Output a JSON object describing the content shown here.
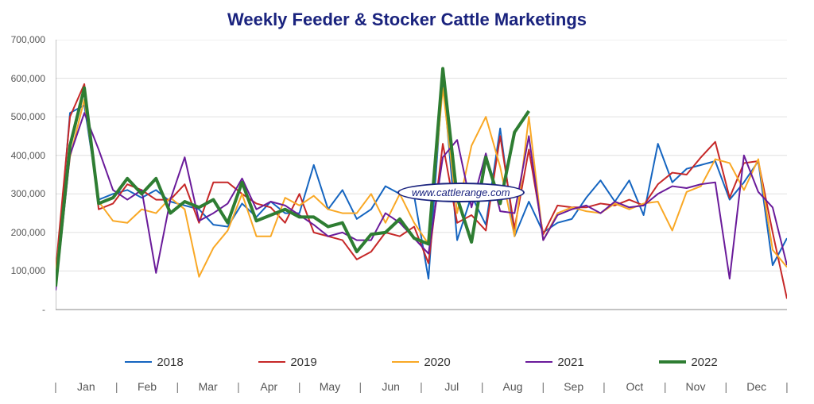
{
  "chart": {
    "type": "line",
    "title": "Weekly Feeder & Stocker Cattle Marketings",
    "title_color": "#1a237e",
    "title_fontsize": 22,
    "watermark": "www.cattlerange.com",
    "watermark_color": "#1a237e",
    "background_color": "#ffffff",
    "grid_color": "#e0e0e0",
    "axis_color": "#888888",
    "label_color": "#555555",
    "ylim": [
      0,
      700000
    ],
    "ytick_step": 100000,
    "y_labels": [
      "-",
      "100,000",
      "200,000",
      "300,000",
      "400,000",
      "500,000",
      "600,000",
      "700,000"
    ],
    "x_months": [
      "Jan",
      "Feb",
      "Mar",
      "Apr",
      "May",
      "Jun",
      "Jul",
      "Aug",
      "Sep",
      "Oct",
      "Nov",
      "Dec"
    ],
    "weeks_count": 52,
    "series": [
      {
        "name": "2018",
        "color": "#1565c0",
        "line_width": 2,
        "values": [
          65000,
          510000,
          530000,
          285000,
          300000,
          310000,
          290000,
          310000,
          280000,
          270000,
          260000,
          220000,
          215000,
          275000,
          240000,
          280000,
          250000,
          250000,
          375000,
          260000,
          310000,
          235000,
          260000,
          320000,
          300000,
          295000,
          80000,
          605000,
          180000,
          295000,
          220000,
          470000,
          190000,
          280000,
          200000,
          225000,
          235000,
          290000,
          335000,
          280000,
          335000,
          245000,
          430000,
          330000,
          365000,
          375000,
          385000,
          285000,
          330000,
          385000,
          115000,
          185000
        ]
      },
      {
        "name": "2019",
        "color": "#c62828",
        "line_width": 2,
        "values": [
          100000,
          500000,
          585000,
          260000,
          275000,
          325000,
          310000,
          285000,
          285000,
          325000,
          225000,
          330000,
          330000,
          300000,
          275000,
          265000,
          225000,
          300000,
          200000,
          190000,
          180000,
          130000,
          150000,
          200000,
          190000,
          215000,
          120000,
          430000,
          225000,
          245000,
          205000,
          450000,
          210000,
          415000,
          195000,
          270000,
          265000,
          265000,
          275000,
          270000,
          285000,
          270000,
          325000,
          355000,
          350000,
          395000,
          435000,
          290000,
          380000,
          385000,
          200000,
          28000
        ]
      },
      {
        "name": "2020",
        "color": "#f9a825",
        "line_width": 2,
        "values": [
          95000,
          395000,
          545000,
          280000,
          230000,
          225000,
          260000,
          250000,
          290000,
          260000,
          85000,
          160000,
          205000,
          300000,
          190000,
          190000,
          290000,
          270000,
          295000,
          260000,
          250000,
          250000,
          300000,
          225000,
          300000,
          225000,
          170000,
          575000,
          250000,
          425000,
          500000,
          370000,
          190000,
          500000,
          180000,
          250000,
          265000,
          255000,
          250000,
          275000,
          260000,
          275000,
          280000,
          205000,
          305000,
          320000,
          390000,
          380000,
          310000,
          390000,
          155000,
          110000
        ]
      },
      {
        "name": "2021",
        "color": "#6a1b9a",
        "line_width": 2,
        "values": [
          50000,
          400000,
          510000,
          415000,
          310000,
          285000,
          310000,
          95000,
          285000,
          395000,
          230000,
          250000,
          275000,
          340000,
          260000,
          280000,
          270000,
          245000,
          220000,
          190000,
          200000,
          180000,
          180000,
          250000,
          225000,
          185000,
          145000,
          395000,
          440000,
          265000,
          405000,
          255000,
          250000,
          450000,
          180000,
          245000,
          260000,
          270000,
          250000,
          280000,
          265000,
          270000,
          300000,
          320000,
          315000,
          325000,
          330000,
          80000,
          400000,
          305000,
          265000,
          115000
        ]
      },
      {
        "name": "2022",
        "color": "#2e7d32",
        "line_width": 4,
        "values": [
          60000,
          425000,
          575000,
          275000,
          290000,
          340000,
          300000,
          340000,
          250000,
          280000,
          265000,
          285000,
          225000,
          330000,
          230000,
          245000,
          260000,
          240000,
          240000,
          215000,
          225000,
          150000,
          195000,
          200000,
          235000,
          185000,
          170000,
          625000,
          290000,
          175000,
          395000,
          275000,
          460000,
          515000
        ]
      }
    ],
    "legend_position": "bottom",
    "legend_fontsize": 15
  }
}
